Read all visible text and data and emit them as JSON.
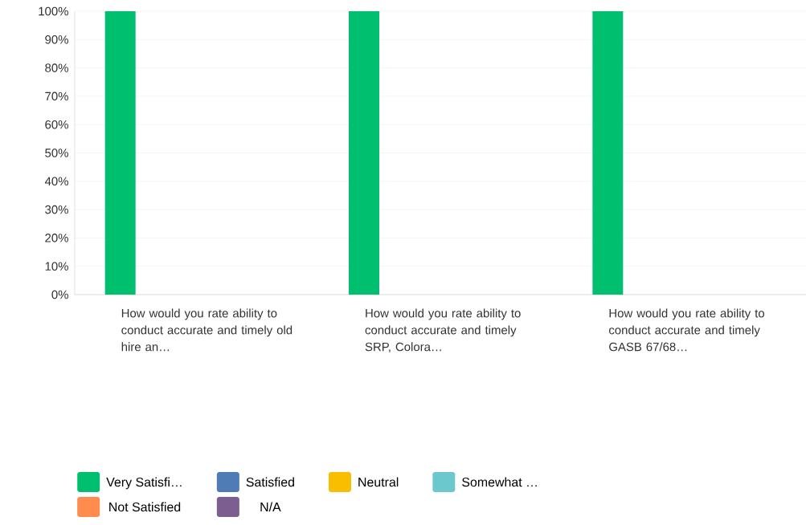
{
  "chart_data": {
    "type": "bar",
    "categories": [
      "How would you rate ability to conduct accurate and timely old hire an…",
      "How would you rate ability to conduct accurate and timely SRP, Colora…",
      "How would you rate ability to conduct accurate and timely GASB 67/68…"
    ],
    "series": [
      {
        "name": "Very Satisfi…",
        "color": "#00bf6f",
        "values": [
          100,
          100,
          100
        ]
      },
      {
        "name": "Satisfied",
        "color": "#507cb6",
        "values": [
          0,
          0,
          0
        ]
      },
      {
        "name": "Neutral",
        "color": "#f9be00",
        "values": [
          0,
          0,
          0
        ]
      },
      {
        "name": "Somewhat …",
        "color": "#6bc8cd",
        "values": [
          0,
          0,
          0
        ]
      },
      {
        "name": "Not Satisfied",
        "color": "#ff8b4f",
        "values": [
          0,
          0,
          0
        ]
      },
      {
        "name": "N/A",
        "color": "#7d5e90",
        "values": [
          0,
          0,
          0
        ]
      }
    ],
    "ylim": [
      0,
      100
    ],
    "yticks": [
      {
        "value": 0,
        "label": "0%"
      },
      {
        "value": 10,
        "label": "10%"
      },
      {
        "value": 20,
        "label": "20%"
      },
      {
        "value": 30,
        "label": "30%"
      },
      {
        "value": 40,
        "label": "40%"
      },
      {
        "value": 50,
        "label": "50%"
      },
      {
        "value": 60,
        "label": "60%"
      },
      {
        "value": 70,
        "label": "70%"
      },
      {
        "value": 80,
        "label": "80%"
      },
      {
        "value": 90,
        "label": "90%"
      },
      {
        "value": 100,
        "label": "100%"
      }
    ],
    "grid": "y",
    "legend": "bottom"
  }
}
